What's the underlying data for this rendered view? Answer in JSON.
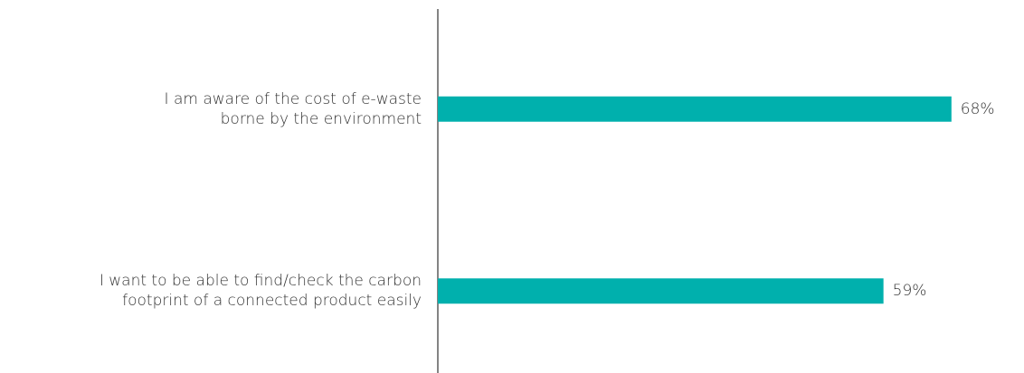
{
  "chart_data": {
    "type": "bar",
    "orientation": "horizontal",
    "categories": [
      "I am aware of the cost of e-waste\nborne by the environment",
      "I want to be able to find/check the carbon\nfootprint of a connected product easily"
    ],
    "values": [
      68,
      59
    ],
    "value_labels": [
      "68%",
      "59%"
    ],
    "color": "#00b0ad",
    "xlim": [
      0,
      100
    ]
  }
}
